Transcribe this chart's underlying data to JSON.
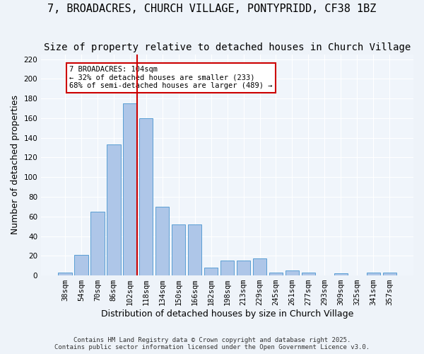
{
  "title": "7, BROADACRES, CHURCH VILLAGE, PONTYPRIDD, CF38 1BZ",
  "subtitle": "Size of property relative to detached houses in Church Village",
  "xlabel": "Distribution of detached houses by size in Church Village",
  "ylabel": "Number of detached properties",
  "categories": [
    "38sqm",
    "54sqm",
    "70sqm",
    "86sqm",
    "102sqm",
    "118sqm",
    "134sqm",
    "150sqm",
    "166sqm",
    "182sqm",
    "198sqm",
    "213sqm",
    "229sqm",
    "245sqm",
    "261sqm",
    "277sqm",
    "293sqm",
    "309sqm",
    "325sqm",
    "341sqm",
    "357sqm"
  ],
  "values": [
    3,
    21,
    65,
    133,
    175,
    160,
    70,
    52,
    52,
    8,
    15,
    15,
    17,
    3,
    5,
    3,
    0,
    2,
    0,
    3,
    3
  ],
  "bar_color": "#aec6e8",
  "bar_edge_color": "#5a9fd4",
  "vline_x": 4.43,
  "vline_color": "#cc0000",
  "annotation_title": "7 BROADACRES: 104sqm",
  "annotation_line1": "← 32% of detached houses are smaller (233)",
  "annotation_line2": "68% of semi-detached houses are larger (489) →",
  "annotation_box_color": "#cc0000",
  "ylim": [
    0,
    225
  ],
  "yticks": [
    0,
    20,
    40,
    60,
    80,
    100,
    120,
    140,
    160,
    180,
    200,
    220
  ],
  "footer1": "Contains HM Land Registry data © Crown copyright and database right 2025.",
  "footer2": "Contains public sector information licensed under the Open Government Licence v3.0.",
  "bg_color": "#eef3f9",
  "plot_bg_color": "#f0f5fb",
  "grid_color": "#ffffff",
  "title_fontsize": 11,
  "subtitle_fontsize": 10,
  "tick_fontsize": 7.5,
  "ylabel_fontsize": 9,
  "xlabel_fontsize": 9
}
